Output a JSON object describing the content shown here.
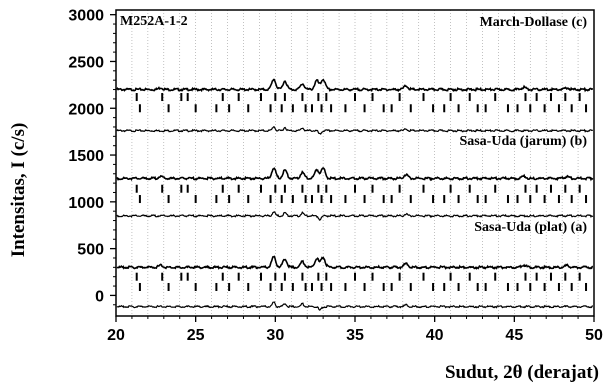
{
  "chart_data": {
    "type": "line",
    "title": "M252A-1-2",
    "xlabel": "Sudut, 2θ (derajat)",
    "ylabel": "Intensitas, I (c/s)",
    "xlim": [
      20,
      50
    ],
    "ylim": [
      -220,
      3050
    ],
    "xticks": [
      "20",
      "25",
      "30",
      "35",
      "40",
      "45",
      "50"
    ],
    "yticks": [
      "0",
      "500",
      "1000",
      "1500",
      "2000",
      "2500",
      "3000"
    ],
    "grid": "dotted vertical",
    "panels": [
      {
        "name": "March-Dollase (c)",
        "observed_offset": 2200,
        "difference_offset": 1760,
        "reflection_rows": [
          2120,
          2000
        ]
      },
      {
        "name": "Sasa-Uda (jarum) (b)",
        "observed_offset": 1250,
        "difference_offset": 850,
        "reflection_rows": [
          1140,
          1030
        ]
      },
      {
        "name": "Sasa-Uda (plat) (a)",
        "observed_offset": 300,
        "difference_offset": -120,
        "reflection_rows": [
          200,
          90
        ]
      }
    ],
    "observed_peaks": [
      {
        "x": 22.8,
        "h": 20
      },
      {
        "x": 29.9,
        "h": 110
      },
      {
        "x": 30.6,
        "h": 90
      },
      {
        "x": 31.7,
        "h": 60
      },
      {
        "x": 32.6,
        "h": 95
      },
      {
        "x": 33.0,
        "h": 110
      },
      {
        "x": 38.2,
        "h": 40
      },
      {
        "x": 45.6,
        "h": 25
      },
      {
        "x": 48.3,
        "h": 18
      }
    ],
    "difference_features": [
      {
        "x": 29.9,
        "h": 45
      },
      {
        "x": 30.6,
        "h": 35
      },
      {
        "x": 31.7,
        "h": 30
      },
      {
        "x": 32.8,
        "h": -40
      },
      {
        "x": 38.2,
        "h": 20
      }
    ],
    "reflections_phase1": [
      21.3,
      22.9,
      24.1,
      24.5,
      26.7,
      27.7,
      29.1,
      30.0,
      30.6,
      31.7,
      32.7,
      33.2,
      35.0,
      36.1,
      37.8,
      39.3,
      41.0,
      42.2,
      43.8,
      45.7,
      46.4,
      47.3,
      48.2,
      49.1
    ],
    "reflections_phase2": [
      21.5,
      23.3,
      25.0,
      26.3,
      27.1,
      28.3,
      29.7,
      30.4,
      31.1,
      31.9,
      32.3,
      32.9,
      33.5,
      34.4,
      35.6,
      36.8,
      37.3,
      38.5,
      39.9,
      40.6,
      41.5,
      42.7,
      43.2,
      44.6,
      45.2,
      46.0,
      46.9,
      47.8,
      48.6,
      49.5
    ]
  }
}
